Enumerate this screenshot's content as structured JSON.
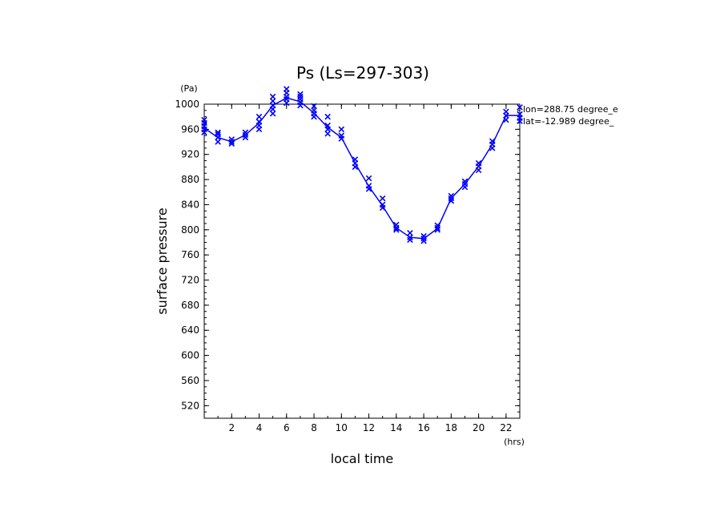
{
  "chart_data": {
    "type": "line",
    "title": "Ps (Ls=297-303)",
    "xlabel": "local time",
    "ylabel": "surface pressure",
    "xunit": "(hrs)",
    "yunit": "(Pa)",
    "xlim": [
      0,
      23
    ],
    "ylim": [
      500,
      1000
    ],
    "xticks": [
      2,
      4,
      6,
      8,
      10,
      12,
      14,
      16,
      18,
      20,
      22
    ],
    "yticks": [
      520,
      560,
      600,
      640,
      680,
      720,
      760,
      800,
      840,
      880,
      920,
      960,
      1000
    ],
    "annotations": [
      "lon=288.75 degree_e",
      "lat=-12.989 degree_"
    ],
    "line_color": "#0000ff",
    "marker": "x",
    "series": [
      {
        "x": [
          0,
          1,
          2,
          3,
          4,
          5,
          6,
          7,
          8,
          9,
          10,
          11,
          12,
          13,
          14,
          15,
          16,
          17,
          18,
          19,
          20,
          21,
          22,
          23
        ],
        "values": [
          962,
          947,
          940,
          951,
          970,
          998,
          1010,
          1004,
          986,
          963,
          947,
          906,
          869,
          838,
          803,
          788,
          786,
          802,
          850,
          873,
          901,
          936,
          982,
          982
        ]
      }
    ],
    "scatter": {
      "x": [
        0,
        0,
        0,
        0,
        0,
        1,
        1,
        1,
        1,
        2,
        2,
        2,
        3,
        3,
        3,
        4,
        4,
        4,
        4,
        5,
        5,
        5,
        5,
        5,
        6,
        6,
        6,
        6,
        6,
        7,
        7,
        7,
        7,
        7,
        8,
        8,
        8,
        8,
        9,
        9,
        9,
        9,
        10,
        10,
        10,
        11,
        11,
        11,
        12,
        12,
        12,
        13,
        13,
        13,
        14,
        14,
        14,
        15,
        15,
        15,
        16,
        16,
        16,
        17,
        17,
        17,
        18,
        18,
        18,
        19,
        19,
        19,
        20,
        20,
        20,
        21,
        21,
        21,
        22,
        22,
        22,
        23,
        23,
        23,
        23
      ],
      "y": [
        955,
        960,
        965,
        970,
        975,
        940,
        947,
        952,
        955,
        937,
        940,
        944,
        947,
        951,
        955,
        960,
        966,
        972,
        980,
        985,
        992,
        998,
        1005,
        1012,
        1002,
        1008,
        1012,
        1018,
        1024,
        998,
        1003,
        1008,
        1012,
        1016,
        980,
        985,
        990,
        997,
        953,
        960,
        966,
        980,
        945,
        950,
        960,
        900,
        906,
        912,
        865,
        870,
        882,
        835,
        840,
        850,
        800,
        803,
        808,
        784,
        788,
        795,
        782,
        786,
        790,
        800,
        803,
        807,
        846,
        850,
        854,
        868,
        873,
        877,
        895,
        901,
        906,
        930,
        936,
        941,
        975,
        982,
        988,
        973,
        978,
        984,
        995
      ]
    }
  }
}
